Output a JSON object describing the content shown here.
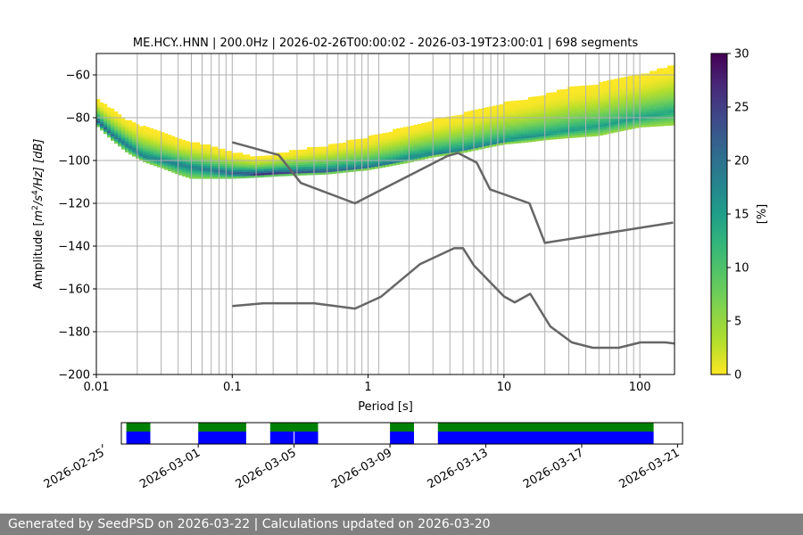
{
  "chart_data": [
    {
      "type": "heatmap",
      "title": "ME.HCY..HNN | 200.0Hz | 2026-02-26T00:00:02 - 2026-03-19T23:00:01 | 698 segments",
      "xlabel": "Period [s]",
      "ylabel": "Amplitude [m²/s⁴/Hz] [dB]",
      "ylabel_parts": {
        "pre": "Amplitude [",
        "m": "m",
        "two": "2",
        "slash_s": "/s",
        "four": "4",
        "post": "/Hz] [dB]"
      },
      "x_scale": "log",
      "xlim": [
        0.01,
        180
      ],
      "ylim": [
        -200,
        -50
      ],
      "x_ticks": [
        "0.01",
        "0.1",
        "1",
        "10",
        "100"
      ],
      "x_tick_values": [
        0.01,
        0.1,
        1,
        10,
        100
      ],
      "y_ticks": [
        "−200",
        "−180",
        "−160",
        "−140",
        "−120",
        "−100",
        "−80",
        "−60"
      ],
      "y_tick_values": [
        -200,
        -180,
        -160,
        -140,
        -120,
        -100,
        -80,
        -60
      ],
      "grid": true,
      "grid_periods": [
        0.02,
        0.03,
        0.04,
        0.05,
        0.06,
        0.07,
        0.08,
        0.09,
        0.1,
        0.15,
        0.2,
        0.3,
        0.4,
        0.5,
        0.6,
        0.7,
        0.8,
        0.9,
        1,
        1.2,
        2,
        3,
        4,
        5,
        6,
        7,
        8,
        9,
        10,
        20,
        30,
        40,
        50,
        60,
        70,
        80,
        90,
        100
      ],
      "grid_amplitudes": [
        -200,
        -180,
        -160,
        -140,
        -120,
        -100,
        -80,
        -60
      ],
      "density_bands": {
        "description_of_values": "mode / lower / upper amplitude (dB) of PSD probability band at each period",
        "period": [
          0.01,
          0.013,
          0.017,
          0.022,
          0.03,
          0.04,
          0.05,
          0.07,
          0.1,
          0.15,
          0.2,
          0.3,
          0.5,
          0.7,
          1,
          1.5,
          2,
          3,
          5,
          7,
          10,
          15,
          20,
          30,
          50,
          70,
          100,
          180
        ],
        "mode": [
          -81,
          -88,
          -93,
          -98,
          -100,
          -101.5,
          -103,
          -104.5,
          -106,
          -106.5,
          -106,
          -105.5,
          -105,
          -104,
          -103,
          -101,
          -99,
          -97,
          -95,
          -93,
          -91,
          -89,
          -88,
          -86,
          -84,
          -82,
          -80,
          -77
        ],
        "lower": [
          -83,
          -90,
          -96,
          -100,
          -103,
          -106,
          -108,
          -108,
          -108,
          -107.5,
          -107,
          -106.5,
          -106,
          -105,
          -104,
          -102,
          -100.5,
          -98,
          -96,
          -94,
          -92,
          -91,
          -90,
          -89,
          -88,
          -86,
          -84,
          -83
        ],
        "upper": [
          -71,
          -76,
          -81,
          -84,
          -87,
          -90,
          -91,
          -93,
          -96,
          -98,
          -97,
          -95,
          -93,
          -91,
          -89,
          -86,
          -84,
          -81,
          -78,
          -76,
          -73,
          -71,
          -69,
          -66,
          -64,
          -62,
          -60,
          -55
        ]
      },
      "series": [
        {
          "name": "",
          "color": "#666666",
          "x": [
            0.1,
            0.22,
            0.32,
            0.8,
            3.8,
            4.6,
            6.3,
            7.9,
            15.4,
            20,
            176
          ],
          "y": [
            -91.5,
            -97.4,
            -110.5,
            -120,
            -98,
            -96.5,
            -101,
            -113.5,
            -120,
            -138.5,
            -129
          ]
        },
        {
          "name": "",
          "color": "#666666",
          "x": [
            0.1,
            0.17,
            0.4,
            0.8,
            1.24,
            2.4,
            4.3,
            5.0,
            6.0,
            10,
            12,
            15.6,
            21.9,
            31.6,
            45,
            70,
            101,
            154,
            180
          ],
          "y": [
            -168,
            -166.7,
            -166.7,
            -169.2,
            -163.7,
            -148.5,
            -141,
            -141,
            -149,
            -163.5,
            -166.3,
            -162.3,
            -177.5,
            -185,
            -187.5,
            -187.5,
            -185,
            -185,
            -185.5
          ]
        }
      ],
      "colorbar": {
        "label": "[%]",
        "min": 0,
        "max": 30,
        "ticks": [
          "0",
          "5",
          "10",
          "15",
          "20",
          "25",
          "30"
        ],
        "tick_values": [
          0,
          5,
          10,
          15,
          20,
          25,
          30
        ],
        "colormap": "viridis_r"
      }
    },
    {
      "type": "timeline",
      "date_ticks": [
        "2026-02-25",
        "2026-03-01",
        "2026-03-05",
        "2026-03-09",
        "2026-03-13",
        "2026-03-17",
        "2026-03-21"
      ],
      "date_tick_values": [
        "2026-02-25",
        "2026-03-01",
        "2026-03-05",
        "2026-03-09",
        "2026-03-13",
        "2026-03-17",
        "2026-03-21"
      ],
      "xlim": [
        "2026-02-25T19:00",
        "2026-03-21T05:00"
      ],
      "colors": {
        "data": "#0000ff",
        "used": "#008000"
      },
      "data_segments": [
        {
          "start": "2026-02-26T00:00",
          "end": "2026-02-27T00:00"
        },
        {
          "start": "2026-03-01T00:00",
          "end": "2026-03-03T00:00"
        },
        {
          "start": "2026-03-04T00:00",
          "end": "2026-03-06T00:00"
        },
        {
          "start": "2026-03-09T00:00",
          "end": "2026-03-10T00:00"
        },
        {
          "start": "2026-03-11T00:00",
          "end": "2026-03-20T00:00"
        }
      ],
      "gap_marks": [
        "2026-03-05T00:00"
      ]
    }
  ],
  "footer": {
    "text": "Generated by SeedPSD on 2026-03-22 | Calculations updated on 2026-03-20"
  }
}
